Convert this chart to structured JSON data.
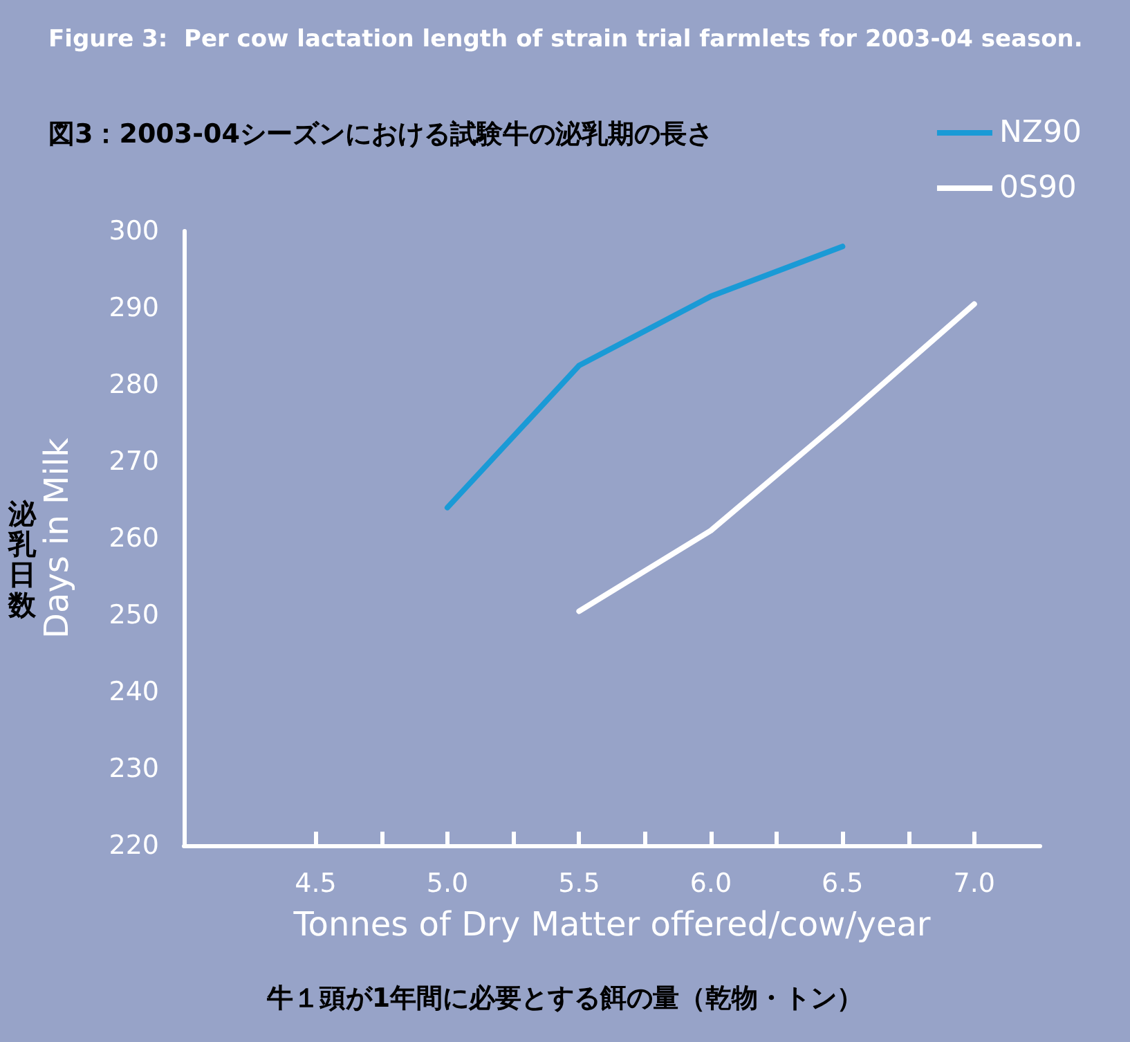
{
  "chart_data": {
    "type": "line",
    "title": "Figure 3:  Per cow lactation length of strain trial farmlets for 2003-04 season.",
    "subtitle": "図3：2003-04シーズンにおける試験牛の泌乳期の長さ",
    "xlabel": "Tonnes of Dry Matter offered/cow/year",
    "ylabel": "Days in Milk",
    "annotations": [
      "泌乳日数",
      "牛１頭が1年間に必要とする餌の量（乾物・トン）"
    ],
    "series": [
      {
        "name": "NZ90",
        "color": "#1a9ad6",
        "x": [
          5.0,
          5.5,
          6.0,
          6.5
        ],
        "values": [
          264,
          282.5,
          291.5,
          298
        ]
      },
      {
        "name": "0S90",
        "color": "#ffffff",
        "x": [
          5.5,
          6.0,
          6.5,
          7.0
        ],
        "values": [
          250.5,
          261,
          275.5,
          290.5
        ]
      }
    ],
    "xlim": [
      4.0,
      7.25
    ],
    "xticks": [
      {
        "value": 4.5,
        "label": "4.5"
      },
      {
        "value": 4.75,
        "label": null
      },
      {
        "value": 5.0,
        "label": "5.0"
      },
      {
        "value": 5.25,
        "label": null
      },
      {
        "value": 5.5,
        "label": "5.5"
      },
      {
        "value": 5.75,
        "label": null
      },
      {
        "value": 6.0,
        "label": "6.0"
      },
      {
        "value": 6.25,
        "label": null
      },
      {
        "value": 6.5,
        "label": "6.5"
      },
      {
        "value": 6.75,
        "label": null
      },
      {
        "value": 7.0,
        "label": "7.0"
      }
    ],
    "ylim": [
      220,
      300
    ],
    "yticks": [
      220,
      230,
      240,
      250,
      260,
      270,
      280,
      290,
      300
    ],
    "grid": false,
    "legend": "top right",
    "marker": "none",
    "line_style": "solid"
  }
}
